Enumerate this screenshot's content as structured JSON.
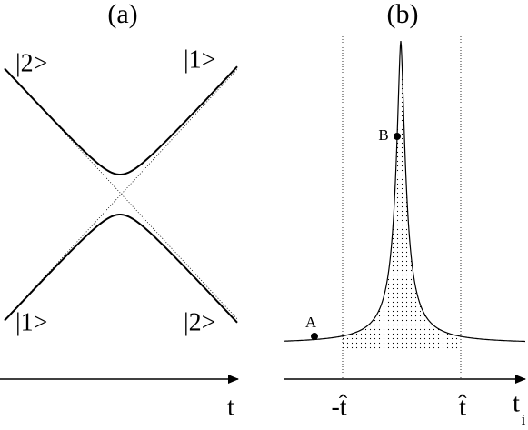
{
  "panels": {
    "a": {
      "label": "(a)",
      "states": {
        "upper_left": "|2>",
        "upper_right": "|1>",
        "lower_left": "|1>",
        "lower_right": "|2>"
      },
      "axis_label": "t"
    },
    "b": {
      "label": "(b)",
      "points": {
        "a": "A",
        "b": "B"
      },
      "ticks": {
        "left": "-t̂",
        "right": "t̂"
      },
      "axis_label": "t",
      "axis_subscript": "i"
    }
  }
}
